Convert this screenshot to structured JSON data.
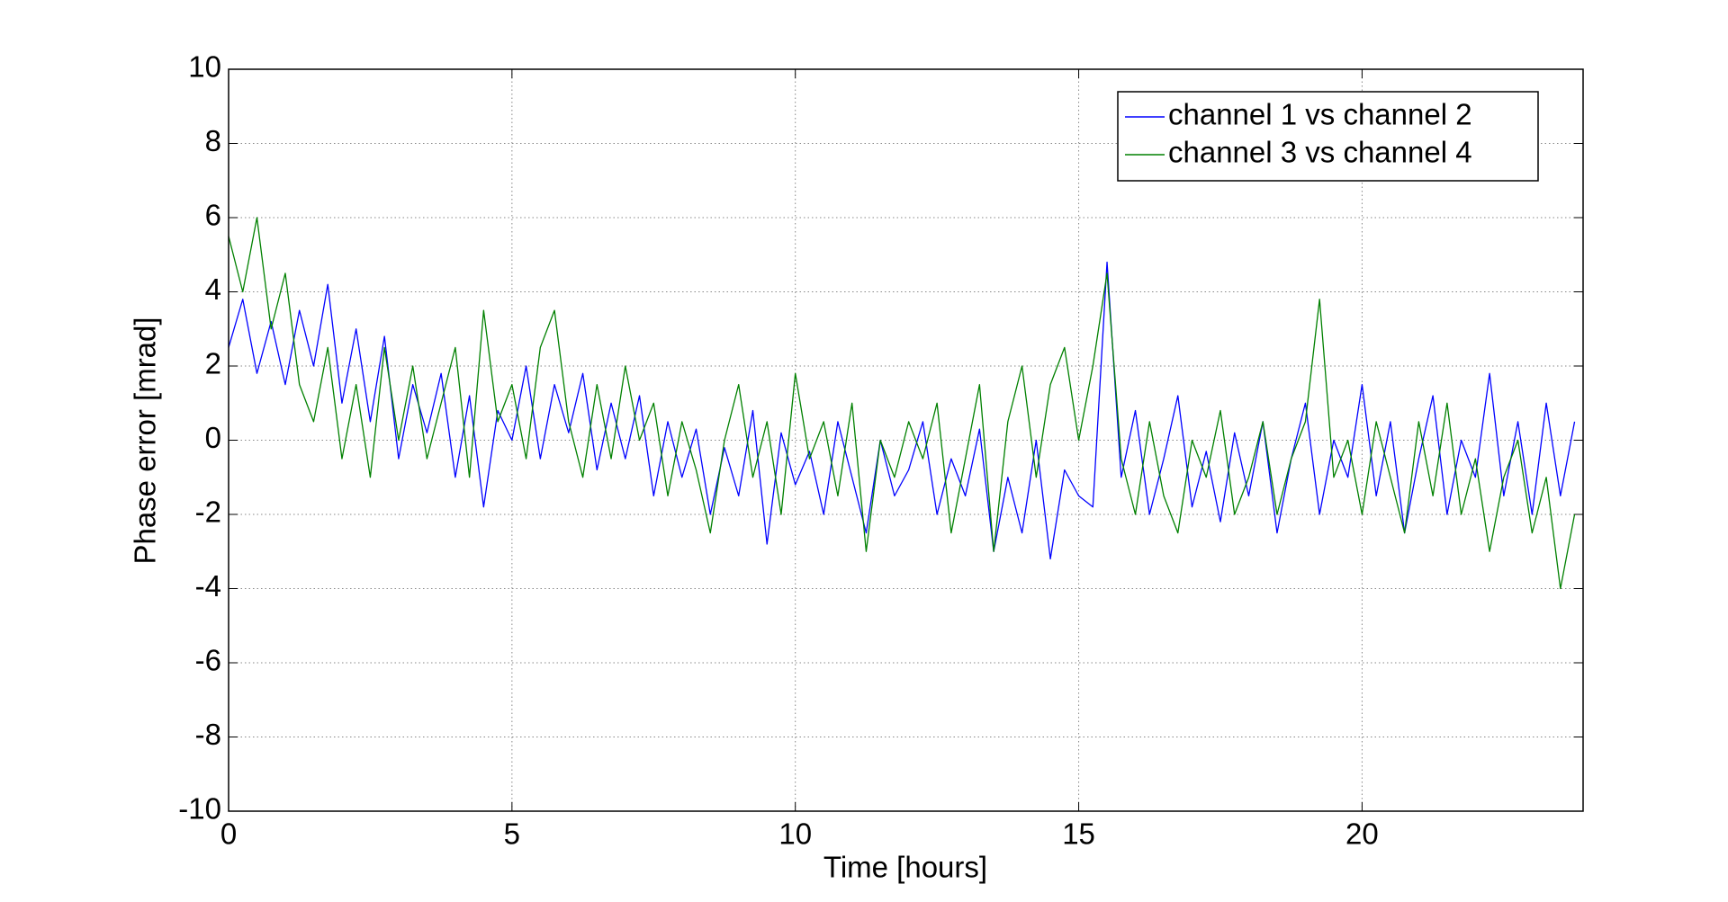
{
  "chart_data": {
    "type": "line",
    "xlabel": "Time [hours]",
    "ylabel": "Phase error [mrad]",
    "xlim": [
      0,
      23.9
    ],
    "ylim": [
      -10,
      10
    ],
    "xticks": [
      0,
      5,
      10,
      15,
      20
    ],
    "yticks": [
      -10,
      -8,
      -6,
      -4,
      -2,
      0,
      2,
      4,
      6,
      8,
      10
    ],
    "grid": true,
    "legend": "northeast",
    "x": [
      0,
      0.25,
      0.5,
      0.75,
      1,
      1.25,
      1.5,
      1.75,
      2,
      2.25,
      2.5,
      2.75,
      3,
      3.25,
      3.5,
      3.75,
      4,
      4.25,
      4.5,
      4.75,
      5,
      5.25,
      5.5,
      5.75,
      6,
      6.25,
      6.5,
      6.75,
      7,
      7.25,
      7.5,
      7.75,
      8,
      8.25,
      8.5,
      8.75,
      9,
      9.25,
      9.5,
      9.75,
      10,
      10.25,
      10.5,
      10.75,
      11,
      11.25,
      11.5,
      11.75,
      12,
      12.25,
      12.5,
      12.75,
      13,
      13.25,
      13.5,
      13.75,
      14,
      14.25,
      14.5,
      14.75,
      15,
      15.25,
      15.5,
      15.75,
      16,
      16.25,
      16.5,
      16.75,
      17,
      17.25,
      17.5,
      17.75,
      18,
      18.25,
      18.5,
      18.75,
      19,
      19.25,
      19.5,
      19.75,
      20,
      20.25,
      20.5,
      20.75,
      21,
      21.25,
      21.5,
      21.75,
      22,
      22.25,
      22.5,
      22.75,
      23,
      23.25,
      23.5,
      23.75
    ],
    "series": [
      {
        "name": "channel 1 vs channel 2",
        "color": "#0000ff",
        "values": [
          2.5,
          3.8,
          1.8,
          3.2,
          1.5,
          3.5,
          2.0,
          4.2,
          1.0,
          3.0,
          0.5,
          2.8,
          -0.5,
          1.5,
          0.2,
          1.8,
          -1.0,
          1.2,
          -1.8,
          0.8,
          0.0,
          2.0,
          -0.5,
          1.5,
          0.2,
          1.8,
          -0.8,
          1.0,
          -0.5,
          1.2,
          -1.5,
          0.5,
          -1.0,
          0.3,
          -2.0,
          -0.2,
          -1.5,
          0.8,
          -2.8,
          0.2,
          -1.2,
          -0.3,
          -2.0,
          0.5,
          -1.0,
          -2.5,
          0.0,
          -1.5,
          -0.8,
          0.5,
          -2.0,
          -0.5,
          -1.5,
          0.3,
          -3.0,
          -1.0,
          -2.5,
          0.0,
          -3.2,
          -0.8,
          -1.5,
          -1.8,
          4.8,
          -1.0,
          0.8,
          -2.0,
          -0.5,
          1.2,
          -1.8,
          -0.3,
          -2.2,
          0.2,
          -1.5,
          0.5,
          -2.5,
          -0.5,
          1.0,
          -2.0,
          0.0,
          -1.0,
          1.5,
          -1.5,
          0.5,
          -2.5,
          -0.5,
          1.2,
          -2.0,
          0.0,
          -1.0,
          1.8,
          -1.5,
          0.5,
          -2.0,
          1.0,
          -1.5,
          0.5
        ]
      },
      {
        "name": "channel 3 vs channel 4",
        "color": "#008000",
        "values": [
          5.5,
          4.0,
          6.0,
          3.0,
          4.5,
          1.5,
          0.5,
          2.5,
          -0.5,
          1.5,
          -1.0,
          2.5,
          0.0,
          2.0,
          -0.5,
          1.0,
          2.5,
          -1.0,
          3.5,
          0.5,
          1.5,
          -0.5,
          2.5,
          3.5,
          0.5,
          -1.0,
          1.5,
          -0.5,
          2.0,
          0.0,
          1.0,
          -1.5,
          0.5,
          -0.8,
          -2.5,
          0.0,
          1.5,
          -1.0,
          0.5,
          -2.0,
          1.8,
          -0.5,
          0.5,
          -1.5,
          1.0,
          -3.0,
          0.0,
          -1.0,
          0.5,
          -0.5,
          1.0,
          -2.5,
          -0.5,
          1.5,
          -3.0,
          0.5,
          2.0,
          -1.0,
          1.5,
          2.5,
          0.0,
          2.0,
          4.5,
          -0.5,
          -2.0,
          0.5,
          -1.5,
          -2.5,
          0.0,
          -1.0,
          0.8,
          -2.0,
          -1.0,
          0.5,
          -2.0,
          -0.5,
          0.5,
          3.8,
          -1.0,
          0.0,
          -2.0,
          0.5,
          -1.0,
          -2.5,
          0.5,
          -1.5,
          1.0,
          -2.0,
          -0.5,
          -3.0,
          -1.0,
          0.0,
          -2.5,
          -1.0,
          -4.0,
          -2.0
        ]
      }
    ]
  }
}
